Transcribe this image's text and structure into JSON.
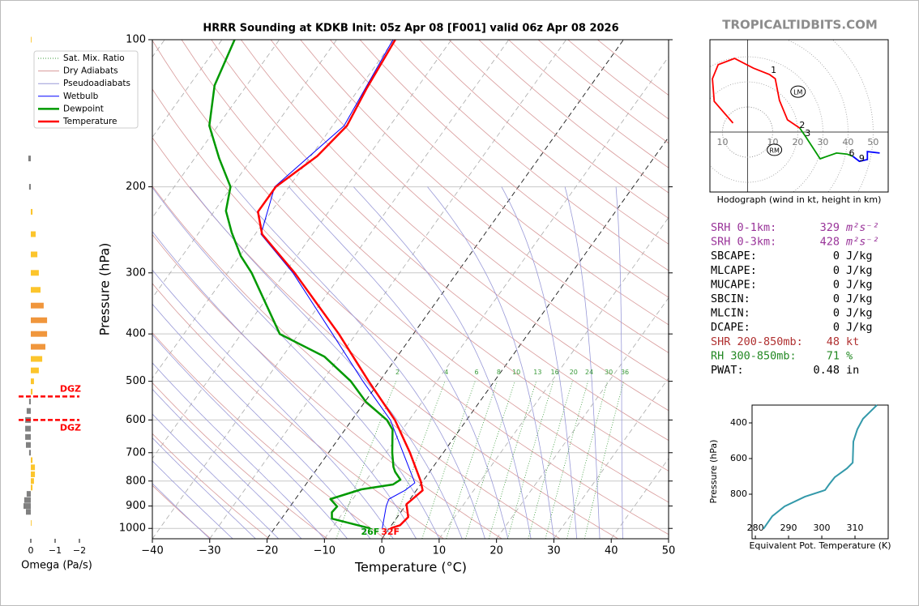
{
  "watermark": "TROPICALTIDBITS.COM",
  "chart_data": [
    {
      "type": "skewt",
      "title": "HRRR Sounding at KDKB Init: 05z Apr 08 [F001] valid 06z Apr 08 2026",
      "xlabel": "Temperature (°C)",
      "ylabel": "Pressure (hPa)",
      "xlim": [
        -40,
        50
      ],
      "xticks": [
        {
          "value": -40,
          "label": "−40"
        },
        {
          "value": -30,
          "label": "−30"
        },
        {
          "value": -20,
          "label": "−20"
        },
        {
          "value": -10,
          "label": "−10"
        },
        0,
        10,
        20,
        30,
        40,
        50
      ],
      "ylim": [
        1050,
        100
      ],
      "log_scale": true,
      "yticks": [
        100,
        200,
        300,
        400,
        500,
        600,
        700,
        800,
        900,
        1000
      ],
      "grid": true,
      "highlight_isotherms": [
        0,
        -20
      ],
      "reference_lines": [
        {
          "name": "Sat. Mix. Ratio",
          "color": "#3a9a3a",
          "style": "dotted",
          "values": [
            2,
            4,
            6,
            8,
            10,
            13,
            16,
            20,
            24,
            30,
            36
          ]
        },
        {
          "name": "Dry Adiabats",
          "color": "#d89a9a",
          "style": "solid"
        },
        {
          "name": "Pseudoadiabats",
          "color": "#9a9ad8",
          "style": "solid"
        }
      ],
      "series": [
        {
          "name": "Wetbulb",
          "color": "#0000ff",
          "width": 1,
          "pressure": [
            1000,
            900,
            871,
            836,
            807,
            700,
            600,
            500,
            400,
            300,
            250,
            200,
            150,
            100
          ],
          "values": [
            -1.2,
            -3.3,
            -3.7,
            -2.0,
            -1.2,
            -7.0,
            -13.3,
            -22.9,
            -34.1,
            -48.6,
            -59.0,
            -62.5,
            -58.0,
            -60.2
          ]
        },
        {
          "name": "Dewpoint",
          "color": "#009900",
          "width": 2.5,
          "pressure": [
            1000,
            955,
            927,
            902,
            871,
            832,
            813,
            795,
            766,
            749,
            700,
            628,
            600,
            551,
            500,
            445,
            400,
            300,
            277,
            248,
            224,
            200,
            175,
            150,
            124,
            100
          ],
          "values": [
            -3.3,
            -11.2,
            -12.0,
            -11.8,
            -13.9,
            -9.7,
            -4.8,
            -4.1,
            -6.0,
            -6.9,
            -8.9,
            -11.7,
            -13.9,
            -19.8,
            -25.0,
            -32.7,
            -43.3,
            -55.8,
            -59.8,
            -64.3,
            -68.0,
            -70.2,
            -75.7,
            -81.5,
            -85.6,
            -87.8
          ]
        },
        {
          "name": "Temperature",
          "color": "#ff0000",
          "width": 2.5,
          "pressure": [
            1000,
            985,
            948,
            892,
            836,
            800,
            700,
            600,
            500,
            400,
            300,
            250,
            225,
            200,
            173,
            150,
            126,
            100
          ],
          "values": [
            0.2,
            1.5,
            1.9,
            0.0,
            1.1,
            -0.4,
            -5.8,
            -12.5,
            -21.9,
            -33.0,
            -48.3,
            -58.8,
            -62.3,
            -62.3,
            -58.9,
            -57.5,
            -58.7,
            -59.8
          ]
        }
      ],
      "surface_labels": [
        {
          "text": "26F",
          "color": "#009900"
        },
        {
          "text": "32F",
          "color": "#ff0000"
        }
      ]
    },
    {
      "type": "hbar",
      "xlabel": "Omega (Pa/s)",
      "xlim": [
        0.5,
        -2.1
      ],
      "xticks": [
        0,
        {
          "value": -1,
          "label": "−1"
        },
        {
          "value": -2,
          "label": "−2"
        }
      ],
      "ylim": [
        1050,
        100
      ],
      "log_scale": true,
      "pressure": [
        100,
        175,
        200,
        225,
        250,
        275,
        300,
        325,
        350,
        375,
        400,
        425,
        450,
        475,
        500,
        525,
        550,
        575,
        600,
        625,
        650,
        675,
        700,
        725,
        750,
        775,
        800,
        825,
        850,
        875,
        900,
        925,
        975
      ],
      "values": [
        -0.03,
        0.1,
        0.07,
        -0.07,
        -0.2,
        -0.27,
        -0.33,
        -0.4,
        -0.53,
        -0.67,
        -0.67,
        -0.6,
        -0.47,
        -0.33,
        -0.13,
        -0.07,
        0.07,
        0.17,
        0.23,
        0.23,
        0.23,
        0.2,
        0.07,
        -0.07,
        -0.17,
        -0.17,
        -0.13,
        -0.07,
        0.17,
        0.27,
        0.3,
        0.2,
        -0.03
      ],
      "colors": [
        "#fcc52c",
        "#808080",
        "#808080",
        "#fcc52c",
        "#fcc52c",
        "#fcc52c",
        "#fcc52c",
        "#fcc52c",
        "#f0963c",
        "#f0963c",
        "#f0963c",
        "#f0963c",
        "#fcc52c",
        "#fcc52c",
        "#fcc52c",
        "#fcc52c",
        "#808080",
        "#808080",
        "#808080",
        "#808080",
        "#808080",
        "#808080",
        "#808080",
        "#fcc52c",
        "#fcc52c",
        "#fcc52c",
        "#fcc52c",
        "#fcc52c",
        "#808080",
        "#808080",
        "#808080",
        "#808080",
        "#fcc52c"
      ],
      "dgz_lines": [
        {
          "pressure": 537,
          "label": "DGZ"
        },
        {
          "pressure": 600,
          "label": "DGZ"
        }
      ]
    },
    {
      "type": "hodograph",
      "caption": "Hodograph (wind in kt, height in km)",
      "xlim": [
        -15,
        56
      ],
      "ylim": [
        -24,
        37
      ],
      "rings": [
        {
          "value": -10,
          "label": "10"
        },
        10,
        20,
        30,
        40,
        50
      ],
      "segments": [
        {
          "color": "#ff0000",
          "u": [
            -5.8,
            -13.3,
            -14,
            -11.7,
            -5.2,
            2.3,
            8.8,
            11,
            12.7,
            15.9,
            20.8
          ],
          "v": [
            3.6,
            12.3,
            21.4,
            27,
            29.5,
            25.6,
            23,
            21.4,
            12.7,
            4.9,
            1.6
          ]
        },
        {
          "color": "#009900",
          "u": [
            20.8,
            23,
            28.9,
            35.4,
            39.6,
            41.9
          ],
          "v": [
            1.6,
            -1.6,
            -10.7,
            -8.4,
            -8.8,
            -9.7
          ]
        },
        {
          "color": "#0000ff",
          "u": [
            41.9,
            44.5,
            47.7,
            47.7,
            52.6
          ],
          "v": [
            -9.7,
            -11.7,
            -11,
            -7.8,
            -8.4
          ]
        }
      ],
      "height_labels": [
        {
          "text": "1",
          "u": 9.4,
          "v": 23.7
        },
        {
          "text": "2",
          "u": 20.8,
          "v": 1.6
        },
        {
          "text": "3",
          "u": 23,
          "v": -1.6
        },
        {
          "text": "6",
          "u": 40.5,
          "v": -9.5
        },
        {
          "text": "9",
          "u": 44.5,
          "v": -11.7
        }
      ],
      "motion_labels": [
        {
          "text": "LM",
          "u": 20.1,
          "v": 16.2
        },
        {
          "text": "RM",
          "u": 10.7,
          "v": -7.1
        }
      ]
    },
    {
      "type": "line",
      "xlabel": "Equivalent Pot. Temperature (K)",
      "ylabel": "Pressure (hPa)",
      "xlim": [
        279,
        320
      ],
      "xticks": [
        280,
        290,
        300,
        310
      ],
      "ylim": [
        1050,
        300
      ],
      "yticks": [
        400,
        600,
        800
      ],
      "color": "#3399aa",
      "values": [
        282.4,
        285.1,
        288.8,
        294.9,
        301,
        302.2,
        303.9,
        307.6,
        309.3,
        309.5,
        310.7,
        312.4,
        316.6
      ],
      "pressure": [
        995,
        923,
        868,
        814,
        777,
        745,
        705,
        655,
        623,
        505,
        436,
        377,
        300
      ]
    }
  ],
  "stats": {
    "rows": [
      {
        "label": "SRH 0-1km:",
        "value": 329,
        "unit": "m²s⁻²",
        "color": "#993399"
      },
      {
        "label": "SRH 0-3km:",
        "value": 428,
        "unit": "m²s⁻²",
        "color": "#993399"
      },
      {
        "label": "SBCAPE:",
        "value": 0,
        "unit": "J/kg",
        "color": "#000000"
      },
      {
        "label": "MLCAPE:",
        "value": 0,
        "unit": "J/kg",
        "color": "#000000"
      },
      {
        "label": "MUCAPE:",
        "value": 0,
        "unit": "J/kg",
        "color": "#000000"
      },
      {
        "label": "SBCIN:",
        "value": 0,
        "unit": "J/kg",
        "color": "#000000"
      },
      {
        "label": "MLCIN:",
        "value": 0,
        "unit": "J/kg",
        "color": "#000000"
      },
      {
        "label": "DCAPE:",
        "value": 0,
        "unit": "J/kg",
        "color": "#000000"
      },
      {
        "label": "SHR 200-850mb:",
        "value": 48,
        "unit": "kt",
        "color": "#b03030"
      },
      {
        "label": "RH 300-850mb:",
        "value": 71,
        "unit": "%",
        "color": "#228822"
      },
      {
        "label": "PWAT:",
        "value": 0.48,
        "unit": "in",
        "color": "#000000"
      }
    ]
  }
}
